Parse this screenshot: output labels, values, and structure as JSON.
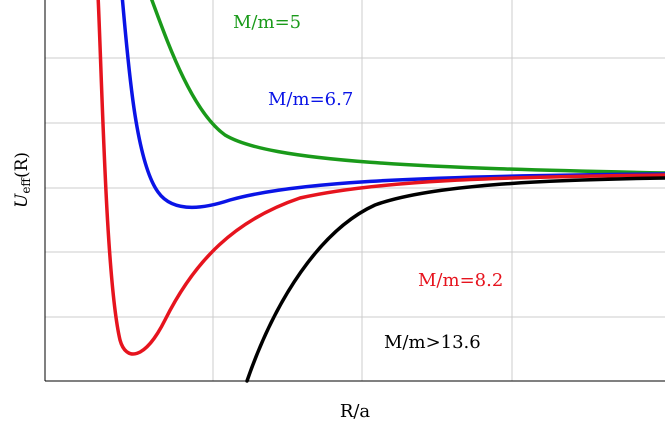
{
  "chart_data": {
    "type": "line",
    "xlabel": "R/a",
    "ylabel": {
      "symbol": "U",
      "subscript": "eff",
      "arg": "(R)"
    },
    "grid": true,
    "x_ticks_labeled": false,
    "y_ticks_labeled": false,
    "series": [
      {
        "name": "M/m=5",
        "color": "#1a9a1a",
        "curve": "repulsive"
      },
      {
        "name": "M/m=6.7",
        "color": "#0a14e6",
        "curve": "shallow-well"
      },
      {
        "name": "M/m=8.2",
        "color": "#e6141e",
        "curve": "deep-well"
      },
      {
        "name": "M/m>13.6",
        "color": "#000000",
        "curve": "no-barrier"
      }
    ]
  }
}
